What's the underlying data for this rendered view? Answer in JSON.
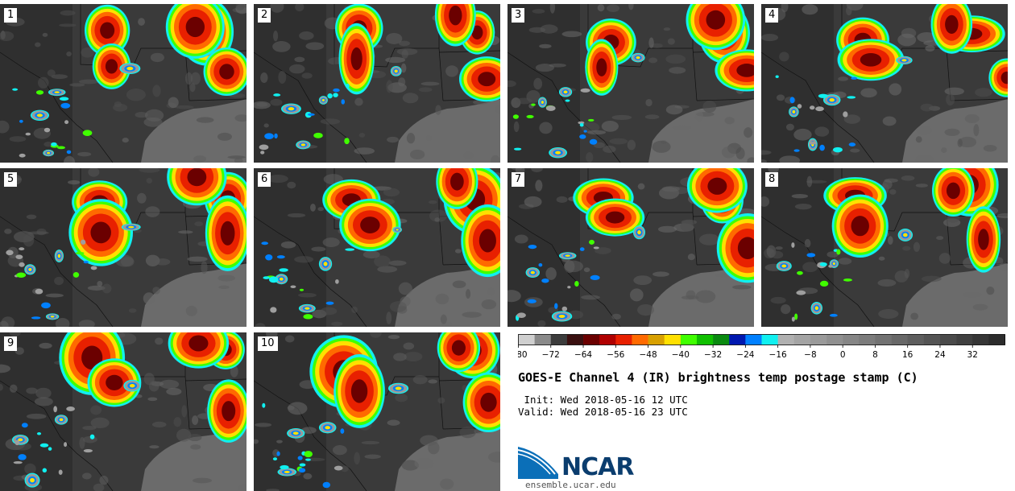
{
  "panels": [
    {
      "label": "1"
    },
    {
      "label": "2"
    },
    {
      "label": "3"
    },
    {
      "label": "4"
    },
    {
      "label": "5"
    },
    {
      "label": "6"
    },
    {
      "label": "7"
    },
    {
      "label": "8"
    },
    {
      "label": "9"
    },
    {
      "label": "10"
    }
  ],
  "colorbar": {
    "ticks": [
      "−80",
      "−72",
      "−64",
      "−56",
      "−48",
      "−40",
      "−32",
      "−24",
      "−16",
      "−8",
      "0",
      "8",
      "16",
      "24",
      "32"
    ],
    "colors": [
      "#cfcfcf",
      "#8a8a8a",
      "#3c3c3c",
      "#3a1010",
      "#6b0000",
      "#b00000",
      "#e82000",
      "#ff6a00",
      "#d8a000",
      "#ffe000",
      "#40ff00",
      "#10c000",
      "#0a8a10",
      "#0018b0",
      "#0080ff",
      "#10f0f0",
      "#b0b0b0",
      "#a4a4a4",
      "#9a9a9a",
      "#909090",
      "#868686",
      "#7c7c7c",
      "#727272",
      "#686868",
      "#5e5e5e",
      "#545454",
      "#4a4a4a",
      "#404040",
      "#363636",
      "#2c2c2c"
    ]
  },
  "title": "GOES-E Channel 4 (IR) brightness temp postage stamp (C)",
  "init": " Init: Wed 2018-05-16 12 UTC",
  "valid": "Valid: Wed 2018-05-16 23 UTC",
  "logo": {
    "name": "NCAR",
    "url": "ensemble.ucar.edu",
    "color": "#0b3d6e"
  }
}
